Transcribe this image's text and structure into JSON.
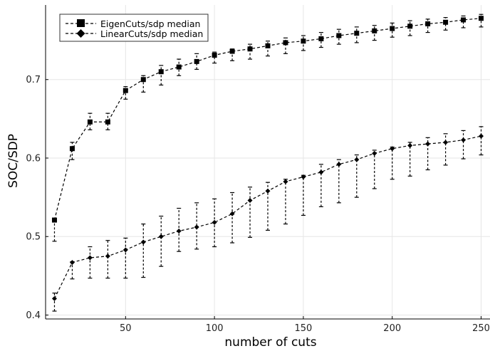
{
  "chart_data": {
    "type": "line",
    "xlabel": "number of cuts",
    "ylabel": "SOC/SDP",
    "xlim": [
      5,
      255
    ],
    "ylim": [
      0.395,
      0.795
    ],
    "xticks": [
      50,
      100,
      150,
      200,
      250
    ],
    "yticks": [
      0.4,
      0.5,
      0.6,
      0.7
    ],
    "xtick_labels": [
      "50",
      "100",
      "150",
      "200",
      "250"
    ],
    "ytick_labels": [
      "0.4",
      "0.5",
      "0.6",
      "0.7"
    ],
    "grid": true,
    "legend_position": "top-left",
    "x": [
      10,
      20,
      30,
      40,
      50,
      60,
      70,
      80,
      90,
      100,
      110,
      120,
      130,
      140,
      150,
      160,
      170,
      180,
      190,
      200,
      210,
      220,
      230,
      240,
      250
    ],
    "series": [
      {
        "name": "EigenCuts/sdp median",
        "marker": "square",
        "color": "#000000",
        "values": [
          0.521,
          0.612,
          0.646,
          0.646,
          0.686,
          0.7,
          0.71,
          0.716,
          0.723,
          0.731,
          0.736,
          0.739,
          0.743,
          0.747,
          0.749,
          0.752,
          0.756,
          0.759,
          0.762,
          0.765,
          0.768,
          0.771,
          0.773,
          0.776,
          0.778
        ],
        "lower": [
          0.494,
          0.598,
          0.636,
          0.636,
          0.675,
          0.684,
          0.693,
          0.705,
          0.713,
          0.721,
          0.724,
          0.726,
          0.73,
          0.733,
          0.737,
          0.741,
          0.745,
          0.747,
          0.75,
          0.754,
          0.756,
          0.76,
          0.763,
          0.766,
          0.767
        ],
        "upper": [
          0.521,
          0.62,
          0.657,
          0.657,
          0.691,
          0.705,
          0.718,
          0.726,
          0.733,
          0.735,
          0.739,
          0.745,
          0.749,
          0.753,
          0.756,
          0.76,
          0.764,
          0.767,
          0.769,
          0.772,
          0.775,
          0.777,
          0.779,
          0.781,
          0.783
        ]
      },
      {
        "name": "LinearCuts/sdp median",
        "marker": "diamond",
        "color": "#000000",
        "values": [
          0.421,
          0.467,
          0.473,
          0.475,
          0.483,
          0.493,
          0.5,
          0.507,
          0.512,
          0.518,
          0.529,
          0.546,
          0.558,
          0.57,
          0.576,
          0.582,
          0.592,
          0.598,
          0.606,
          0.612,
          0.616,
          0.618,
          0.62,
          0.623,
          0.628
        ],
        "lower": [
          0.405,
          0.446,
          0.447,
          0.447,
          0.447,
          0.448,
          0.462,
          0.481,
          0.484,
          0.487,
          0.492,
          0.499,
          0.508,
          0.516,
          0.527,
          0.538,
          0.543,
          0.55,
          0.561,
          0.573,
          0.577,
          0.585,
          0.591,
          0.599,
          0.604
        ],
        "upper": [
          0.428,
          0.468,
          0.487,
          0.495,
          0.498,
          0.516,
          0.526,
          0.536,
          0.543,
          0.548,
          0.556,
          0.563,
          0.569,
          0.573,
          0.578,
          0.592,
          0.598,
          0.604,
          0.61,
          0.614,
          0.62,
          0.626,
          0.631,
          0.635,
          0.64
        ]
      }
    ]
  }
}
